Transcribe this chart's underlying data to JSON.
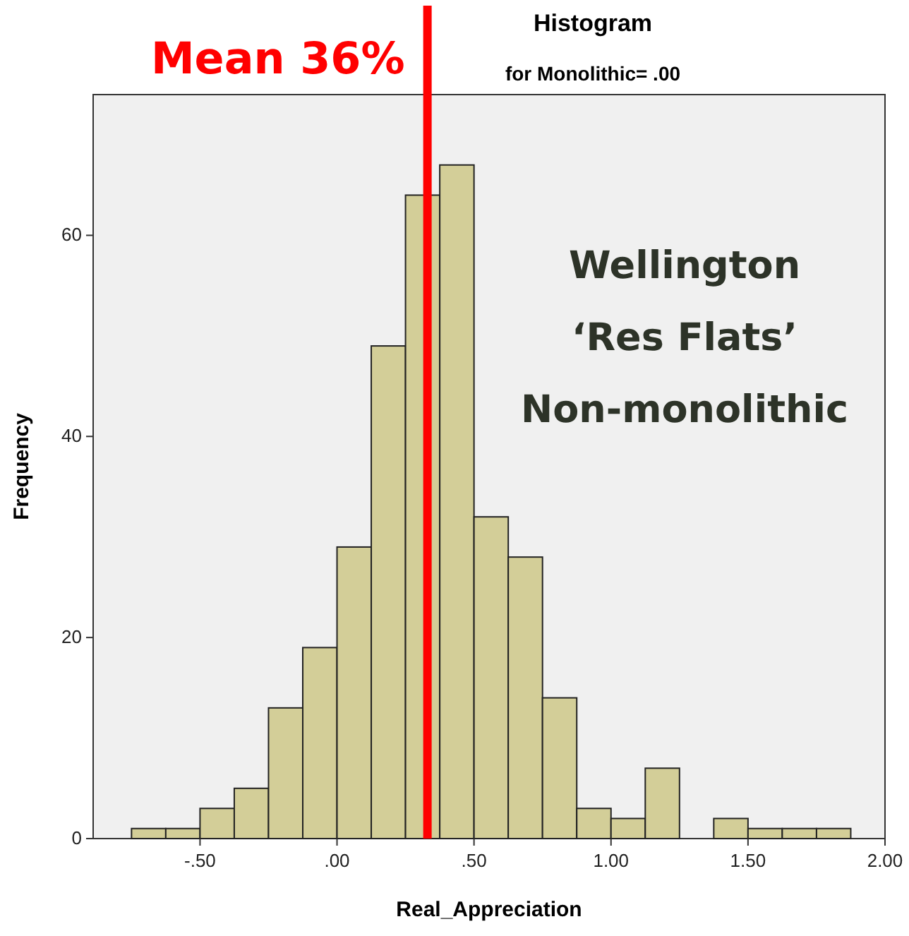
{
  "chart_data": {
    "type": "histogram",
    "title": "Histogram",
    "subtitle": "for Monolithic= .00",
    "xlabel": "Real_Appreciation",
    "ylabel": "Frequency",
    "bins": [
      -0.75,
      -0.625,
      -0.5,
      -0.375,
      -0.25,
      -0.125,
      0,
      0.125,
      0.25,
      0.375,
      0.5,
      0.625,
      0.75,
      0.875,
      1.0,
      1.125,
      1.25,
      1.375,
      1.5,
      1.625,
      1.75,
      1.875
    ],
    "values": [
      1,
      1,
      3,
      5,
      13,
      19,
      29,
      49,
      64,
      67,
      32,
      28,
      14,
      3,
      2,
      7,
      0,
      2,
      1,
      1,
      1
    ],
    "color": "#d3ce98",
    "xlim": [
      -0.89,
      2.0
    ],
    "xticks": [
      {
        "value": -0.5,
        "label": "-.50"
      },
      {
        "value": 0,
        "label": ".00"
      },
      {
        "value": 0.5,
        "label": ".50"
      },
      {
        "value": 1,
        "label": "1.00"
      },
      {
        "value": 1.5,
        "label": "1.50"
      },
      {
        "value": 2,
        "label": "2.00"
      }
    ],
    "ylim": [
      0,
      74
    ],
    "yticks": [
      0,
      20,
      40,
      60
    ],
    "ref_lines": [
      {
        "axis": "x",
        "value": 0.33,
        "label": "Mean 36%",
        "color": "#ff0000"
      }
    ],
    "annotations": [
      "Wellington\n‘Res Flats’\nNon-monolithic"
    ]
  }
}
